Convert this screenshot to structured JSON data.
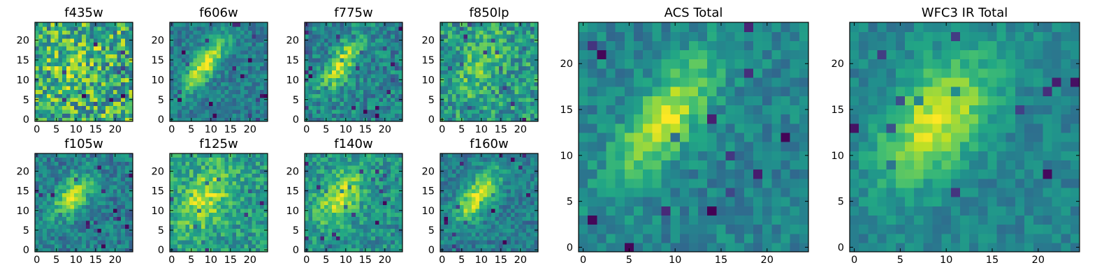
{
  "chart_data": {
    "type": "heatmap",
    "colormap": "viridis",
    "image_size": [
      25,
      25
    ],
    "panels": [
      {
        "title": "f435w",
        "xticks": [
          "0",
          "5",
          "10",
          "15",
          "20"
        ],
        "yticks": [
          "0",
          "5",
          "10",
          "15",
          "20"
        ],
        "center": [
          9,
          14
        ],
        "sigma": [
          2.6,
          5.5
        ],
        "angle": -40,
        "peak": 0.15,
        "noise": 0.32,
        "base": 0.62,
        "xlim": [
          0,
          25
        ],
        "ylim": [
          0,
          25
        ]
      },
      {
        "title": "f606w",
        "xticks": [
          "0",
          "5",
          "10",
          "15",
          "20"
        ],
        "yticks": [
          "0",
          "5",
          "10",
          "15",
          "20"
        ],
        "center": [
          8.5,
          14
        ],
        "sigma": [
          1.9,
          5.6
        ],
        "angle": -38,
        "peak": 0.55,
        "noise": 0.14,
        "base": 0.42,
        "xlim": [
          0,
          25
        ],
        "ylim": [
          0,
          25
        ]
      },
      {
        "title": "f775w",
        "xticks": [
          "0",
          "5",
          "10",
          "15",
          "20"
        ],
        "yticks": [
          "0",
          "5",
          "10",
          "15",
          "20"
        ],
        "center": [
          9,
          14
        ],
        "sigma": [
          2.0,
          5.4
        ],
        "angle": -35,
        "peak": 0.45,
        "noise": 0.18,
        "base": 0.45,
        "xlim": [
          0,
          25
        ],
        "ylim": [
          0,
          25
        ]
      },
      {
        "title": "f850lp",
        "xticks": [
          "0",
          "5",
          "10",
          "15",
          "20"
        ],
        "yticks": [
          "0",
          "5",
          "10",
          "15",
          "20"
        ],
        "center": [
          10,
          14
        ],
        "sigma": [
          2.8,
          5.5
        ],
        "angle": -30,
        "peak": 0.22,
        "noise": 0.22,
        "base": 0.55,
        "xlim": [
          0,
          25
        ],
        "ylim": [
          0,
          25
        ]
      },
      {
        "title": "f105w",
        "xticks": [
          "0",
          "5",
          "10",
          "15",
          "20"
        ],
        "yticks": [
          "0",
          "5",
          "10",
          "15",
          "20"
        ],
        "center": [
          9,
          13.5
        ],
        "sigma": [
          2.6,
          4.8
        ],
        "angle": -40,
        "peak": 0.45,
        "noise": 0.16,
        "base": 0.42,
        "xlim": [
          0,
          25
        ],
        "ylim": [
          0,
          25
        ]
      },
      {
        "title": "f125w",
        "xticks": [
          "0",
          "5",
          "10",
          "15",
          "20"
        ],
        "yticks": [
          "0",
          "5",
          "10",
          "15",
          "20"
        ],
        "center": [
          8.5,
          13
        ],
        "sigma": [
          3.6,
          6.2
        ],
        "angle": -30,
        "peak": 0.35,
        "noise": 0.18,
        "base": 0.55,
        "xlim": [
          0,
          25
        ],
        "ylim": [
          0,
          25
        ]
      },
      {
        "title": "f140w",
        "xticks": [
          "0",
          "5",
          "10",
          "15",
          "20"
        ],
        "yticks": [
          "0",
          "5",
          "10",
          "15",
          "20"
        ],
        "center": [
          8.5,
          13.5
        ],
        "sigma": [
          3.3,
          5.6
        ],
        "angle": -35,
        "peak": 0.38,
        "noise": 0.17,
        "base": 0.5,
        "xlim": [
          0,
          25
        ],
        "ylim": [
          0,
          25
        ]
      },
      {
        "title": "f160w",
        "xticks": [
          "0",
          "5",
          "10",
          "15",
          "20"
        ],
        "yticks": [
          "0",
          "5",
          "10",
          "15",
          "20"
        ],
        "center": [
          9,
          13.5
        ],
        "sigma": [
          2.4,
          5.6
        ],
        "angle": -38,
        "peak": 0.52,
        "noise": 0.14,
        "base": 0.42,
        "xlim": [
          0,
          25
        ],
        "ylim": [
          0,
          25
        ]
      },
      {
        "title": "ACS Total",
        "xticks": [
          "0",
          "5",
          "10",
          "15",
          "20"
        ],
        "yticks": [
          "0",
          "5",
          "10",
          "15",
          "20"
        ],
        "center": [
          9,
          14
        ],
        "sigma": [
          2.1,
          5.8
        ],
        "angle": -37,
        "peak": 0.48,
        "noise": 0.12,
        "base": 0.45,
        "xlim": [
          0,
          25
        ],
        "ylim": [
          0,
          25
        ]
      },
      {
        "title": "WFC3 IR Total",
        "xticks": [
          "0",
          "5",
          "10",
          "15",
          "20"
        ],
        "yticks": [
          "0",
          "5",
          "10",
          "15",
          "20"
        ],
        "center": [
          9,
          14
        ],
        "sigma": [
          3.2,
          5.6
        ],
        "angle": -37,
        "peak": 0.48,
        "noise": 0.1,
        "base": 0.45,
        "xlim": [
          0,
          25
        ],
        "ylim": [
          0,
          25
        ]
      }
    ]
  }
}
